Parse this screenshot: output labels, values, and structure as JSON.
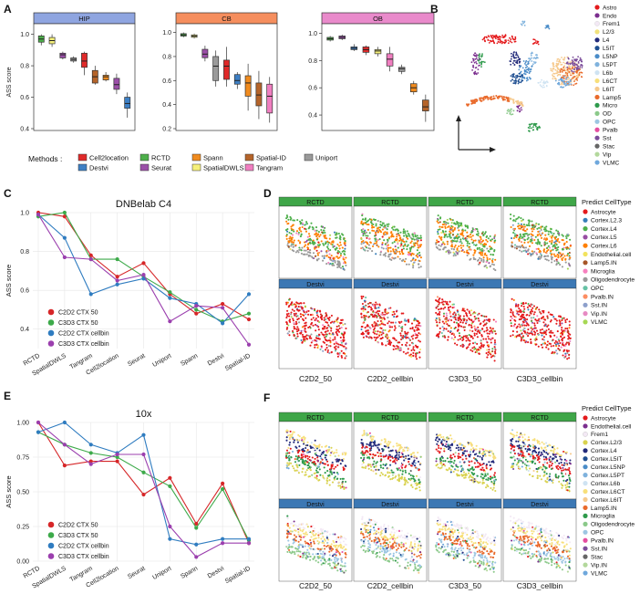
{
  "panel_labels": {
    "A": "A",
    "B": "B",
    "C": "C",
    "D": "D",
    "E": "E",
    "F": "F"
  },
  "colors": {
    "hip_strip": "#8fa5e0",
    "cb_strip": "#f58e5e",
    "ob_strip": "#e98acb",
    "rctd_strip": "#3fa648",
    "destvi_strip": "#3c78b4",
    "c2d2_50": "#d62628",
    "c3d3_50": "#3daa4a",
    "c2d2_cellbin": "#2f7cc0",
    "c3d3_cellbin": "#9b3fae"
  },
  "panel_b": {
    "legend": [
      {
        "label": "Astro",
        "color": "#e41a1c"
      },
      {
        "label": "Endo",
        "color": "#7b2e8e"
      },
      {
        "label": "Frem1",
        "color": "#f3e9f5"
      },
      {
        "label": "L2/3",
        "color": "#f2e27b"
      },
      {
        "label": "L4",
        "color": "#222a7a"
      },
      {
        "label": "L5IT",
        "color": "#1f4f91"
      },
      {
        "label": "L5NP",
        "color": "#4a8cc8"
      },
      {
        "label": "L5PT",
        "color": "#7fb2dd"
      },
      {
        "label": "L6b",
        "color": "#cfe3f2"
      },
      {
        "label": "L6CT",
        "color": "#f7df7a"
      },
      {
        "label": "L6IT",
        "color": "#f6c98c"
      },
      {
        "label": "Lamp5",
        "color": "#e96a2b"
      },
      {
        "label": "Micro",
        "color": "#2e9a4b"
      },
      {
        "label": "OD",
        "color": "#8bc98a"
      },
      {
        "label": "OPC",
        "color": "#9dc6e2"
      },
      {
        "label": "Pvalb",
        "color": "#e54da0"
      },
      {
        "label": "Sst",
        "color": "#7b4c9a"
      },
      {
        "label": "Stac",
        "color": "#666666"
      },
      {
        "label": "Vip",
        "color": "#b3d89c"
      },
      {
        "label": "VLMC",
        "color": "#6fa8dc"
      }
    ]
  },
  "panel_d": {
    "strip_top": "RCTD",
    "strip_bottom": "Destvi",
    "samples": [
      "C2D2_50",
      "C2D2_cellbin",
      "C3D3_50",
      "C3D3_cellbin"
    ],
    "legend_title": "Predict CellType",
    "legend": [
      {
        "label": "Astrocyte",
        "color": "#e41a1c"
      },
      {
        "label": "Cortex.L2.3",
        "color": "#377eb8"
      },
      {
        "label": "Cortex.L4",
        "color": "#4daf4a"
      },
      {
        "label": "Cortex.L5",
        "color": "#984ea3"
      },
      {
        "label": "Cortex.L6",
        "color": "#ff7f00"
      },
      {
        "label": "Endothelial.cell",
        "color": "#f2e35e"
      },
      {
        "label": "Lamp5.IN",
        "color": "#a65628"
      },
      {
        "label": "Microglia",
        "color": "#f781bf"
      },
      {
        "label": "Oligodendrocyte",
        "color": "#999999"
      },
      {
        "label": "OPC",
        "color": "#66c2a5"
      },
      {
        "label": "Pvalb.IN",
        "color": "#fc8d62"
      },
      {
        "label": "Sst.IN",
        "color": "#8da0cb"
      },
      {
        "label": "Vip.IN",
        "color": "#e78ac3"
      },
      {
        "label": "VLMC",
        "color": "#a6d854"
      }
    ]
  },
  "panel_f": {
    "strip_top": "RCTD",
    "strip_bottom": "Destvi",
    "samples": [
      "C2D2_50",
      "C2D2_cellbin",
      "C3D3_50",
      "C3D3_cellbin"
    ],
    "legend_title": "Predict CellType",
    "legend": [
      {
        "label": "Astrocyte",
        "color": "#e41a1c"
      },
      {
        "label": "Endothelial.cell",
        "color": "#7b2e8e"
      },
      {
        "label": "Frem1",
        "color": "#f3e9f5"
      },
      {
        "label": "Cortex.L2/3",
        "color": "#d9d24f"
      },
      {
        "label": "Cortex.L4",
        "color": "#222a7a"
      },
      {
        "label": "Cortex.L5IT",
        "color": "#1f4f91"
      },
      {
        "label": "Cortex.L5NP",
        "color": "#4a8cc8"
      },
      {
        "label": "Cortex.L5PT",
        "color": "#7fb2dd"
      },
      {
        "label": "Cortex.L6b",
        "color": "#cfe3f2"
      },
      {
        "label": "Cortex.L6CT",
        "color": "#f7df7a"
      },
      {
        "label": "Cortex.L6IT",
        "color": "#f6c98c"
      },
      {
        "label": "Lamp5.IN",
        "color": "#e96a2b"
      },
      {
        "label": "Microglia",
        "color": "#2e9a4b"
      },
      {
        "label": "Oligodendrocyte",
        "color": "#8bc98a"
      },
      {
        "label": "OPC",
        "color": "#9dc6e2"
      },
      {
        "label": "Pvalb.IN",
        "color": "#e54da0"
      },
      {
        "label": "Sst.IN",
        "color": "#7b4c9a"
      },
      {
        "label": "Stac",
        "color": "#666666"
      },
      {
        "label": "Vip.IN",
        "color": "#b3d89c"
      },
      {
        "label": "VLMC",
        "color": "#6fa8dc"
      }
    ]
  },
  "chart_data": [
    {
      "type": "box",
      "id": "A",
      "ylabel": "ASS score",
      "methods_label": "Methods :",
      "methods": [
        {
          "name": "Cell2location",
          "color": "#e02a2a"
        },
        {
          "name": "RCTD",
          "color": "#4daf4a"
        },
        {
          "name": "Spann",
          "color": "#f08b1e"
        },
        {
          "name": "Spatial-ID",
          "color": "#b5642a"
        },
        {
          "name": "Uniport",
          "color": "#9a9a9a"
        },
        {
          "name": "Destvi",
          "color": "#3d7fc4"
        },
        {
          "name": "Seurat",
          "color": "#9b4fa8"
        },
        {
          "name": "SpatialDWLS",
          "color": "#f5f07a"
        },
        {
          "name": "Tangram",
          "color": "#f07ec0"
        }
      ],
      "facets": [
        {
          "title": "HIP",
          "ylim": [
            0.4,
            1.05
          ],
          "yticks": [
            "0.4",
            "0.6",
            "0.8",
            "1.0"
          ],
          "boxes": [
            {
              "method": "RCTD",
              "q": [
                0.93,
                0.95,
                0.97,
                0.99,
                1.0
              ]
            },
            {
              "method": "SpatialDWLS",
              "q": [
                0.92,
                0.94,
                0.96,
                0.98,
                1.0
              ]
            },
            {
              "method": "Seurat",
              "q": [
                0.84,
                0.85,
                0.87,
                0.88,
                0.89
              ]
            },
            {
              "method": "Uniport",
              "q": [
                0.82,
                0.83,
                0.84,
                0.85,
                0.86
              ]
            },
            {
              "method": "Cell2location",
              "q": [
                0.74,
                0.79,
                0.83,
                0.88,
                0.89
              ]
            },
            {
              "method": "Spatial-ID",
              "q": [
                0.68,
                0.69,
                0.73,
                0.77,
                0.8
              ]
            },
            {
              "method": "Spann",
              "q": [
                0.7,
                0.71,
                0.73,
                0.74,
                0.76
              ]
            },
            {
              "method": "Seurat",
              "q": [
                0.62,
                0.65,
                0.68,
                0.72,
                0.75
              ]
            },
            {
              "method": "Destvi",
              "q": [
                0.47,
                0.53,
                0.56,
                0.6,
                0.63
              ]
            }
          ]
        },
        {
          "title": "CB",
          "ylim": [
            0.2,
            1.05
          ],
          "yticks": [
            "0.2",
            "0.4",
            "0.6",
            "0.8",
            "1.0"
          ],
          "boxes": [
            {
              "method": "RCTD",
              "q": [
                0.96,
                0.97,
                0.98,
                0.99,
                1.0
              ]
            },
            {
              "method": "SpatialDWLS",
              "q": [
                0.95,
                0.96,
                0.97,
                0.98,
                0.99
              ]
            },
            {
              "method": "Seurat",
              "q": [
                0.76,
                0.79,
                0.82,
                0.86,
                0.89
              ]
            },
            {
              "method": "Uniport",
              "q": [
                0.55,
                0.6,
                0.72,
                0.8,
                0.85
              ]
            },
            {
              "method": "Cell2location",
              "q": [
                0.55,
                0.61,
                0.72,
                0.77,
                0.88
              ]
            },
            {
              "method": "Destvi",
              "q": [
                0.53,
                0.57,
                0.6,
                0.65,
                0.67
              ]
            },
            {
              "method": "Spann",
              "q": [
                0.35,
                0.47,
                0.58,
                0.64,
                0.74
              ]
            },
            {
              "method": "Spatial-ID",
              "q": [
                0.28,
                0.39,
                0.48,
                0.58,
                0.68
              ]
            },
            {
              "method": "Tangram",
              "q": [
                0.25,
                0.33,
                0.47,
                0.57,
                0.63
              ]
            }
          ]
        },
        {
          "title": "OB",
          "ylim": [
            0.3,
            1.05
          ],
          "yticks": [
            "0.4",
            "0.6",
            "0.8",
            "1.0"
          ],
          "boxes": [
            {
              "method": "RCTD",
              "q": [
                0.94,
                0.95,
                0.96,
                0.97,
                0.98
              ]
            },
            {
              "method": "Seurat",
              "q": [
                0.95,
                0.96,
                0.97,
                0.98,
                0.99
              ]
            },
            {
              "method": "Destvi",
              "q": [
                0.87,
                0.88,
                0.89,
                0.9,
                0.92
              ]
            },
            {
              "method": "Cell2location",
              "q": [
                0.84,
                0.86,
                0.88,
                0.9,
                0.91
              ]
            },
            {
              "method": "SpatialDWLS",
              "q": [
                0.83,
                0.85,
                0.87,
                0.88,
                0.9
              ]
            },
            {
              "method": "Tangram",
              "q": [
                0.72,
                0.76,
                0.81,
                0.85,
                0.9
              ]
            },
            {
              "method": "Uniport",
              "q": [
                0.7,
                0.72,
                0.74,
                0.75,
                0.77
              ]
            },
            {
              "method": "Spann",
              "q": [
                0.55,
                0.57,
                0.6,
                0.63,
                0.65
              ]
            },
            {
              "method": "Spatial-ID",
              "q": [
                0.35,
                0.43,
                0.46,
                0.51,
                0.55
              ]
            }
          ]
        }
      ]
    },
    {
      "type": "line",
      "id": "C",
      "title": "DNBelab C4",
      "ylabel": "ASS score",
      "categories": [
        "RCTD",
        "SpatialDWLS",
        "Tangram",
        "Cell2location",
        "Seurat",
        "Uniport",
        "Spann",
        "Destvi",
        "Spatial-ID"
      ],
      "ylim": [
        0.3,
        1.0
      ],
      "yticks": [
        "0.4",
        "0.6",
        "0.8",
        "1.0"
      ],
      "series": [
        {
          "name": "C2D2 CTX 50",
          "color": "#d62628",
          "values": [
            1.0,
            0.98,
            0.78,
            0.67,
            0.74,
            0.58,
            0.48,
            0.53,
            0.45
          ]
        },
        {
          "name": "C3D3 CTX 50",
          "color": "#3daa4a",
          "values": [
            0.98,
            1.0,
            0.76,
            0.76,
            0.67,
            0.59,
            0.5,
            0.44,
            0.48
          ]
        },
        {
          "name": "C2D2 CTX cellbin",
          "color": "#2f7cc0",
          "values": [
            0.99,
            0.87,
            0.58,
            0.63,
            0.66,
            0.56,
            0.53,
            0.43,
            0.58
          ]
        },
        {
          "name": "C3D3 CTX cellbin",
          "color": "#9b3fae",
          "values": [
            0.99,
            0.77,
            0.76,
            0.65,
            0.68,
            0.44,
            0.52,
            0.51,
            0.32
          ]
        }
      ]
    },
    {
      "type": "line",
      "id": "E",
      "title": "10x",
      "ylabel": "ASS score",
      "categories": [
        "RCTD",
        "SpatialDWLS",
        "Tangram",
        "Cell2location",
        "Seurat",
        "Uniport",
        "Spann",
        "Destvi",
        "Spatial-ID"
      ],
      "ylim": [
        0.0,
        1.0
      ],
      "yticks": [
        "0.00",
        "0.25",
        "0.50",
        "0.75",
        "1.00"
      ],
      "series": [
        {
          "name": "C2D2 CTX 50",
          "color": "#d62628",
          "values": [
            1.0,
            0.69,
            0.72,
            0.72,
            0.48,
            0.6,
            0.27,
            0.56,
            0.13
          ]
        },
        {
          "name": "C3D3 CTX 50",
          "color": "#3daa4a",
          "values": [
            0.93,
            0.84,
            0.78,
            0.75,
            0.64,
            0.54,
            0.24,
            0.52,
            0.15
          ]
        },
        {
          "name": "C2D2 CTX cellbin",
          "color": "#2f7cc0",
          "values": [
            0.93,
            1.0,
            0.84,
            0.78,
            0.91,
            0.16,
            0.12,
            0.16,
            0.16
          ]
        },
        {
          "name": "C3D3 CTX cellbin",
          "color": "#9b3fae",
          "values": [
            1.0,
            0.84,
            0.7,
            0.77,
            0.77,
            0.25,
            0.03,
            0.13,
            0.13
          ]
        }
      ]
    }
  ]
}
